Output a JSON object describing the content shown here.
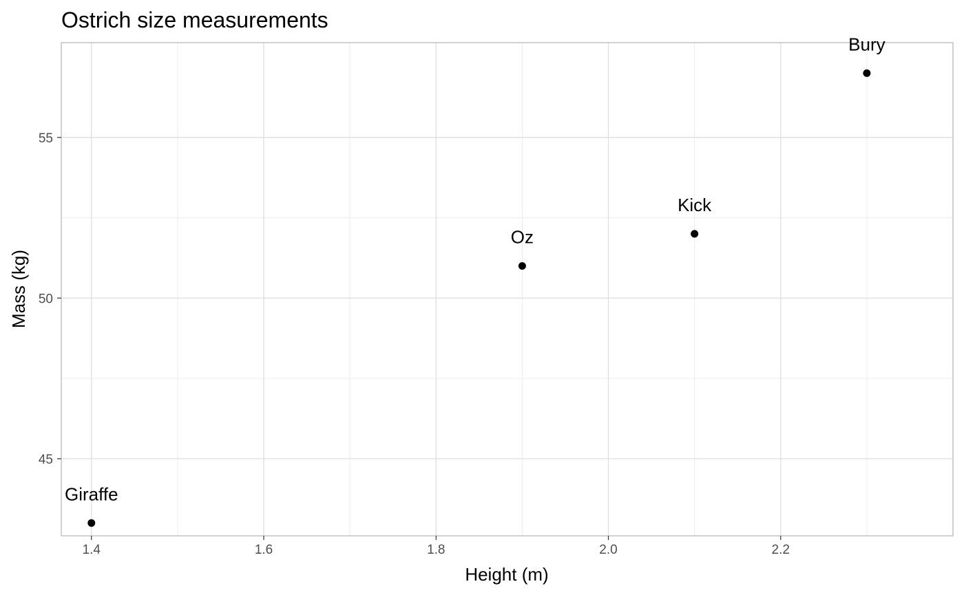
{
  "chart_data": {
    "type": "scatter",
    "title": "Ostrich size measurements",
    "xlabel": "Height (m)",
    "ylabel": "Mass (kg)",
    "xlim": [
      1.365,
      2.4
    ],
    "ylim": [
      42.6,
      57.95
    ],
    "x_ticks": [
      1.4,
      1.6,
      1.8,
      2.0,
      2.2
    ],
    "x_tick_labels": [
      "1.4",
      "1.6",
      "1.8",
      "2.0",
      "2.2"
    ],
    "x_minor_ticks": [
      1.5,
      1.7,
      1.9,
      2.1,
      2.3
    ],
    "y_ticks": [
      45,
      50,
      55
    ],
    "y_tick_labels": [
      "45",
      "50",
      "55"
    ],
    "y_minor_ticks": [
      47.5,
      52.5
    ],
    "grid": true,
    "theme": "light",
    "colors": {
      "point": "#000000",
      "panel_border": "#b3b3b3",
      "major_grid": "#dedede",
      "minor_grid": "#ececec",
      "tick_label": "#4d4d4d"
    },
    "points": [
      {
        "label": "Giraffe",
        "x": 1.4,
        "y": 43.0
      },
      {
        "label": "Oz",
        "x": 1.9,
        "y": 51.0
      },
      {
        "label": "Kick",
        "x": 2.1,
        "y": 52.0
      },
      {
        "label": "Bury",
        "x": 2.3,
        "y": 57.0
      }
    ]
  }
}
